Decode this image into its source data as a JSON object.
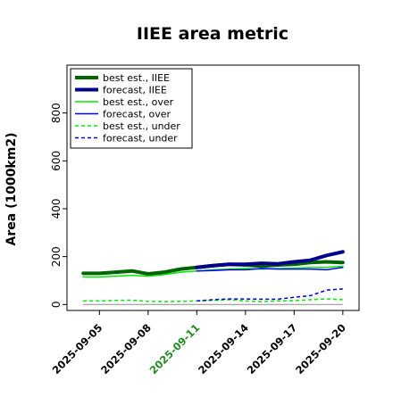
{
  "chart_data": {
    "type": "line",
    "title": "IIEE area metric",
    "xlabel": "",
    "ylabel": "Area (1000km2)",
    "ylim": [
      -25,
      1000
    ],
    "y_ticks": [
      0,
      200,
      400,
      600,
      800
    ],
    "y_tick_labels": [
      "0",
      "200",
      "400",
      "600",
      "800"
    ],
    "x": [
      "2025-09-04",
      "2025-09-05",
      "2025-09-06",
      "2025-09-07",
      "2025-09-08",
      "2025-09-09",
      "2025-09-10",
      "2025-09-11",
      "2025-09-12",
      "2025-09-13",
      "2025-09-14",
      "2025-09-15",
      "2025-09-16",
      "2025-09-17",
      "2025-09-18",
      "2025-09-19",
      "2025-09-20"
    ],
    "x_ticks": [
      "2025-09-05",
      "2025-09-08",
      "2025-09-11",
      "2025-09-14",
      "2025-09-17",
      "2025-09-20"
    ],
    "x_tick_colors": [
      "#000000",
      "#000000",
      "#228b22",
      "#000000",
      "#000000",
      "#000000"
    ],
    "xlim": [
      "2025-09-03",
      "2025-09-21"
    ],
    "grid": false,
    "legend_position": "top-left",
    "series": [
      {
        "name": "best est., IIEE",
        "color": "#006400",
        "style": "solid",
        "width": 4,
        "values": [
          130,
          130,
          135,
          140,
          128,
          135,
          148,
          155,
          162,
          168,
          165,
          160,
          165,
          168,
          175,
          178,
          175
        ]
      },
      {
        "name": "forecast, IIEE",
        "color": "#00008b",
        "style": "solid",
        "width": 4,
        "values": [
          null,
          null,
          null,
          null,
          null,
          null,
          null,
          155,
          162,
          168,
          168,
          172,
          170,
          178,
          185,
          205,
          220
        ]
      },
      {
        "name": "best est., over",
        "color": "#00ee00",
        "style": "solid",
        "width": 1.5,
        "values": [
          115,
          115,
          118,
          122,
          118,
          125,
          135,
          140,
          145,
          148,
          150,
          148,
          150,
          152,
          155,
          155,
          160
        ]
      },
      {
        "name": "forecast, over",
        "color": "#0000ff",
        "style": "solid",
        "width": 1.5,
        "values": [
          null,
          null,
          null,
          null,
          null,
          null,
          null,
          140,
          142,
          145,
          145,
          150,
          148,
          148,
          148,
          145,
          155
        ]
      },
      {
        "name": "best est., under",
        "color": "#00ee00",
        "style": "dashed",
        "width": 1.5,
        "values": [
          15,
          15,
          17,
          18,
          13,
          12,
          13,
          15,
          17,
          20,
          15,
          12,
          15,
          16,
          20,
          23,
          20
        ]
      },
      {
        "name": "forecast, under",
        "color": "#0000cd",
        "style": "dashed",
        "width": 1.5,
        "values": [
          null,
          null,
          null,
          null,
          null,
          null,
          null,
          15,
          20,
          23,
          23,
          22,
          22,
          30,
          37,
          60,
          65
        ]
      }
    ]
  }
}
